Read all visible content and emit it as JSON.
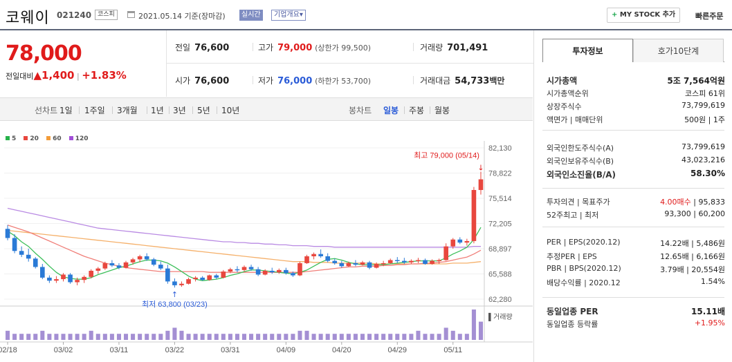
{
  "header": {
    "name": "코웨이",
    "code": "021240",
    "market": "코스피",
    "date": "2021.05.14 기준(장마감)",
    "realtime": "실시간",
    "overview": "기업개요",
    "overview_arrow": "▾",
    "mystock_plus": "+",
    "mystock": "MY STOCK 추가",
    "quick_order": "빠른주문"
  },
  "price": {
    "current": "78,000",
    "change_label": "전일대비",
    "change_arrow": "▲",
    "change": "1,400",
    "sep": "|",
    "rate": "+1.83%"
  },
  "summary": {
    "prev_label": "전일",
    "prev": "76,600",
    "high_label": "고가",
    "high": "79,000",
    "upper_limit": "(상한가 99,500)",
    "volume_label": "거래량",
    "volume": "701,491",
    "open_label": "시가",
    "open": "76,600",
    "low_label": "저가",
    "low": "76,000",
    "lower_limit": "(하한가 53,700)",
    "amount_label": "거래대금",
    "amount": "54,733",
    "amount_unit": "백만"
  },
  "period_bar": {
    "line_label": "선차트",
    "periods": [
      "1일",
      "1주일",
      "3개월",
      "1년",
      "3년",
      "5년",
      "10년"
    ],
    "candle_label": "봉차트",
    "candles": [
      "일봉",
      "주봉",
      "월봉"
    ]
  },
  "legend": [
    {
      "label": "5",
      "color": "#27b24a"
    },
    {
      "label": "20",
      "color": "#e8473e"
    },
    {
      "label": "60",
      "color": "#f39c3a"
    },
    {
      "label": "120",
      "color": "#a24fd8"
    }
  ],
  "chart_data": {
    "type": "candlestick",
    "x_ticks": [
      "02/18",
      "03/02",
      "03/11",
      "03/22",
      "03/31",
      "04/09",
      "04/20",
      "04/29",
      "05/11"
    ],
    "y_ticks": [
      "82,130",
      "78,822",
      "75,514",
      "72,205",
      "68,897",
      "65,588",
      "62,280"
    ],
    "ylim": [
      62280,
      82130
    ],
    "max_label": "최고 79,000 (05/14)",
    "min_label": "최저 63,800 (03/23)",
    "volume_label": "거래량",
    "candles": [
      [
        71500,
        72000,
        70000,
        70300
      ],
      [
        70300,
        70800,
        68300,
        68600
      ],
      [
        68600,
        69200,
        67800,
        68100
      ],
      [
        68100,
        68900,
        67200,
        67600
      ],
      [
        67600,
        67800,
        66300,
        66500
      ],
      [
        66500,
        66900,
        64900,
        65100
      ],
      [
        65100,
        65400,
        64400,
        64700
      ],
      [
        64700,
        65300,
        64400,
        64900
      ],
      [
        64900,
        65700,
        64600,
        65500
      ],
      [
        65500,
        65700,
        64300,
        64500
      ],
      [
        64500,
        65100,
        64100,
        64800
      ],
      [
        64800,
        65400,
        64400,
        65200
      ],
      [
        65200,
        66200,
        65000,
        66000
      ],
      [
        66000,
        66500,
        65600,
        66300
      ],
      [
        66300,
        67200,
        66100,
        67000
      ],
      [
        67000,
        67400,
        66500,
        66700
      ],
      [
        66700,
        67000,
        66200,
        66400
      ],
      [
        66400,
        67300,
        66300,
        67100
      ],
      [
        67100,
        67700,
        66800,
        67500
      ],
      [
        67500,
        68100,
        67100,
        67900
      ],
      [
        67900,
        68300,
        67300,
        67500
      ],
      [
        67500,
        67700,
        66600,
        66800
      ],
      [
        66800,
        67200,
        66100,
        66300
      ],
      [
        66300,
        66800,
        64300,
        64600
      ],
      [
        64600,
        65000,
        63800,
        64100
      ],
      [
        64100,
        64600,
        63900,
        64300
      ],
      [
        64300,
        65100,
        64200,
        64900
      ],
      [
        64900,
        65300,
        64600,
        65100
      ],
      [
        65100,
        65300,
        64700,
        64800
      ],
      [
        64800,
        65500,
        64700,
        65400
      ],
      [
        65400,
        65600,
        64900,
        65100
      ],
      [
        65100,
        66100,
        65000,
        65900
      ],
      [
        65900,
        66400,
        65700,
        66200
      ],
      [
        66200,
        66600,
        65800,
        66100
      ],
      [
        66100,
        66700,
        65900,
        66500
      ],
      [
        66500,
        66800,
        66000,
        66200
      ],
      [
        66200,
        66500,
        65300,
        65500
      ],
      [
        65500,
        66200,
        65400,
        66000
      ],
      [
        66000,
        66400,
        65600,
        65800
      ],
      [
        65800,
        66300,
        65600,
        66100
      ],
      [
        66100,
        66400,
        65500,
        65700
      ],
      [
        65700,
        65900,
        65200,
        65400
      ],
      [
        65400,
        67200,
        65300,
        67000
      ],
      [
        67000,
        68100,
        66900,
        67900
      ],
      [
        67900,
        68400,
        67500,
        68200
      ],
      [
        68200,
        68800,
        67700,
        67900
      ],
      [
        67900,
        68300,
        67100,
        67300
      ],
      [
        67300,
        67600,
        66800,
        67000
      ],
      [
        67000,
        67300,
        66400,
        66600
      ],
      [
        66600,
        67200,
        66500,
        67000
      ],
      [
        67000,
        67400,
        66600,
        66800
      ],
      [
        66800,
        67300,
        66700,
        67100
      ],
      [
        67100,
        67300,
        66200,
        66400
      ],
      [
        66400,
        67100,
        66300,
        66900
      ],
      [
        66900,
        67300,
        66600,
        67000
      ],
      [
        67000,
        67600,
        66900,
        67400
      ],
      [
        67400,
        67800,
        67000,
        67300
      ],
      [
        67300,
        67700,
        66900,
        67100
      ],
      [
        67100,
        67500,
        66900,
        67300
      ],
      [
        67300,
        67700,
        67000,
        67400
      ],
      [
        67400,
        67600,
        66800,
        66900
      ],
      [
        66900,
        67500,
        66800,
        67300
      ],
      [
        67300,
        67600,
        66900,
        67400
      ],
      [
        67400,
        69600,
        67300,
        69200
      ],
      [
        69200,
        70300,
        68900,
        70100
      ],
      [
        70100,
        70400,
        69500,
        69700
      ],
      [
        69700,
        70200,
        69300,
        69900
      ],
      [
        69900,
        77000,
        69600,
        76600
      ],
      [
        76600,
        79000,
        76000,
        78000
      ]
    ],
    "volume": [
      3,
      2,
      2,
      2,
      2,
      3,
      2,
      2,
      2,
      2,
      2,
      2,
      3,
      2,
      2,
      2,
      2,
      2,
      2,
      2,
      2,
      2,
      2,
      3,
      4,
      3,
      2,
      2,
      2,
      2,
      2,
      2,
      2,
      2,
      2,
      2,
      2,
      2,
      2,
      2,
      2,
      2,
      3,
      3,
      2,
      2,
      2,
      2,
      2,
      2,
      2,
      2,
      2,
      2,
      2,
      2,
      2,
      2,
      2,
      3,
      2,
      2,
      2,
      4,
      3,
      2,
      2,
      10,
      6
    ],
    "ma5": [
      71200,
      70600,
      69800,
      69200,
      68300,
      67500,
      66600,
      65800,
      65200,
      65000,
      64900,
      64900,
      65100,
      65500,
      65800,
      66100,
      66400,
      66600,
      66900,
      67200,
      67400,
      67400,
      67300,
      67000,
      66500,
      65900,
      65300,
      64900,
      64700,
      64800,
      64900,
      65100,
      65400,
      65600,
      65900,
      66100,
      66100,
      66000,
      65900,
      65800,
      65700,
      65600,
      65800,
      66100,
      66600,
      67100,
      67500,
      67600,
      67400,
      67100,
      66900,
      66800,
      66800,
      66800,
      66800,
      66900,
      67000,
      67100,
      67200,
      67300,
      67300,
      67300,
      67300,
      67700,
      68200,
      68600,
      69100,
      70100,
      71700
    ],
    "ma20": [
      72000,
      71700,
      71400,
      71100,
      70700,
      70300,
      69900,
      69500,
      69100,
      68700,
      68300,
      67900,
      67600,
      67300,
      67000,
      66800,
      66600,
      66400,
      66300,
      66200,
      66100,
      66000,
      65900,
      65900,
      65900,
      65900,
      65900,
      65900,
      65900,
      65800,
      65800,
      65800,
      65800,
      65800,
      65800,
      65800,
      65800,
      65800,
      65800,
      65800,
      65800,
      65800,
      65800,
      65900,
      66000,
      66100,
      66200,
      66300,
      66400,
      66500,
      66500,
      66600,
      66600,
      66600,
      66700,
      66700,
      66800,
      66800,
      66900,
      66900,
      67000,
      67000,
      67100,
      67200,
      67400,
      67600,
      67800,
      68200,
      68700
    ],
    "ma60": [
      71300,
      71200,
      71100,
      71000,
      70900,
      70800,
      70700,
      70600,
      70500,
      70400,
      70300,
      70200,
      70100,
      70000,
      69900,
      69800,
      69700,
      69600,
      69500,
      69400,
      69300,
      69200,
      69100,
      69000,
      68900,
      68800,
      68700,
      68600,
      68500,
      68400,
      68300,
      68200,
      68100,
      68000,
      67900,
      67800,
      67700,
      67600,
      67500,
      67400,
      67300,
      67200,
      67200,
      67200,
      67100,
      67100,
      67100,
      67000,
      67000,
      67000,
      67000,
      67000,
      67000,
      66900,
      66900,
      66900,
      66900,
      66900,
      66900,
      66900,
      66900,
      66900,
      66900,
      66900,
      67000,
      67000,
      67000,
      67100,
      67200
    ],
    "ma120": [
      74200,
      74000,
      73800,
      73600,
      73400,
      73200,
      73000,
      72800,
      72600,
      72400,
      72200,
      72000,
      71800,
      71600,
      71500,
      71400,
      71300,
      71200,
      71100,
      71000,
      70900,
      70800,
      70700,
      70600,
      70500,
      70400,
      70300,
      70200,
      70100,
      70000,
      69900,
      69800,
      69800,
      69700,
      69700,
      69600,
      69600,
      69500,
      69500,
      69400,
      69400,
      69300,
      69300,
      69300,
      69200,
      69200,
      69200,
      69100,
      69100,
      69100,
      69100,
      69100,
      69100,
      69100,
      69100,
      69100,
      69100,
      69100,
      69100,
      69100,
      69100,
      69100,
      69100,
      69100,
      69100,
      69100,
      69100,
      69200,
      69200
    ]
  },
  "side": {
    "tab1": "투자정보",
    "tab2": "호가10단계",
    "g1": [
      {
        "k": "시가총액",
        "v": "5조 7,564억원",
        "bold": true
      },
      {
        "k": "시가총액순위",
        "v": "코스피 61위"
      },
      {
        "k": "상장주식수",
        "v": "73,799,619"
      },
      {
        "k": "액면가 | 매매단위",
        "v": "500원 | 1주"
      }
    ],
    "g2": [
      {
        "k": "외국인한도주식수(A)",
        "v": "73,799,619"
      },
      {
        "k": "외국인보유주식수(B)",
        "v": "43,023,216"
      },
      {
        "k": "외국인소진율(B/A)",
        "v": "58.30%",
        "bold": true
      }
    ],
    "g3": [
      {
        "k": "투자의견 | 목표주가",
        "v": "4.00매수 | 95,833"
      },
      {
        "k": "52주최고 | 최저",
        "v": "93,300 | 60,200"
      }
    ],
    "g4": [
      {
        "k": "PER | EPS(2020.12)",
        "v": "14.22배 | 5,486원"
      },
      {
        "k": "추정PER | EPS",
        "v": "12.65배 | 6,166원"
      },
      {
        "k": "PBR | BPS(2020.12)",
        "v": "3.79배 | 20,554원"
      },
      {
        "k": "배당수익률 | 2020.12",
        "v": "1.54%"
      }
    ],
    "g5": [
      {
        "k": "동일업종 PER",
        "v": "15.11배",
        "bold": true
      },
      {
        "k": "동일업종 등락률",
        "v": "+1.95%"
      }
    ]
  }
}
